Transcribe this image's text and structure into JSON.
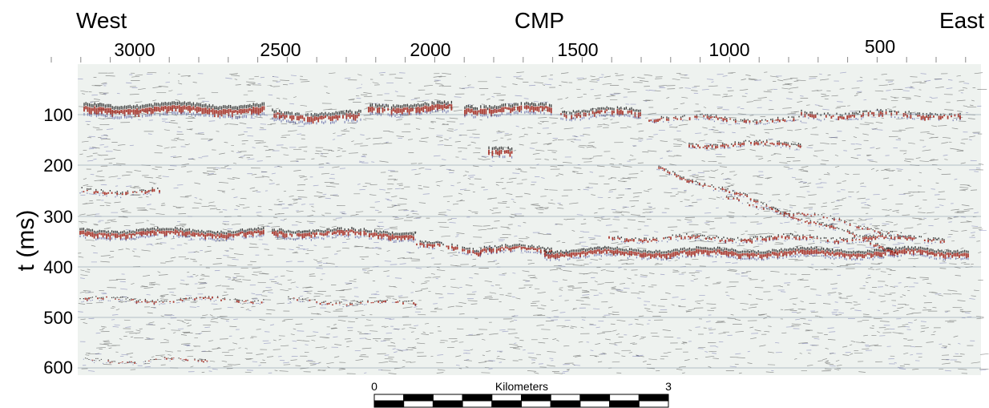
{
  "figure": {
    "label_west": "West",
    "label_east": "East",
    "label_cmp": "CMP",
    "y_axis_title": "t (ms)",
    "cmp_ticks": [
      "3000",
      "2500",
      "2000",
      "1500",
      "1000",
      "500"
    ],
    "time_ticks": [
      "100",
      "200",
      "300",
      "400",
      "500",
      "600"
    ],
    "scale_bar": {
      "start_label": "0",
      "title": "Kilometers",
      "end_label": "3",
      "segments": 10
    },
    "section": {
      "background": "#eef2ef",
      "positive_color": "#9e1b10",
      "negative_color": "#2a2f8a",
      "wiggle_color": "#1a1a1a",
      "gridline_color": "#7d8fa0"
    }
  }
}
